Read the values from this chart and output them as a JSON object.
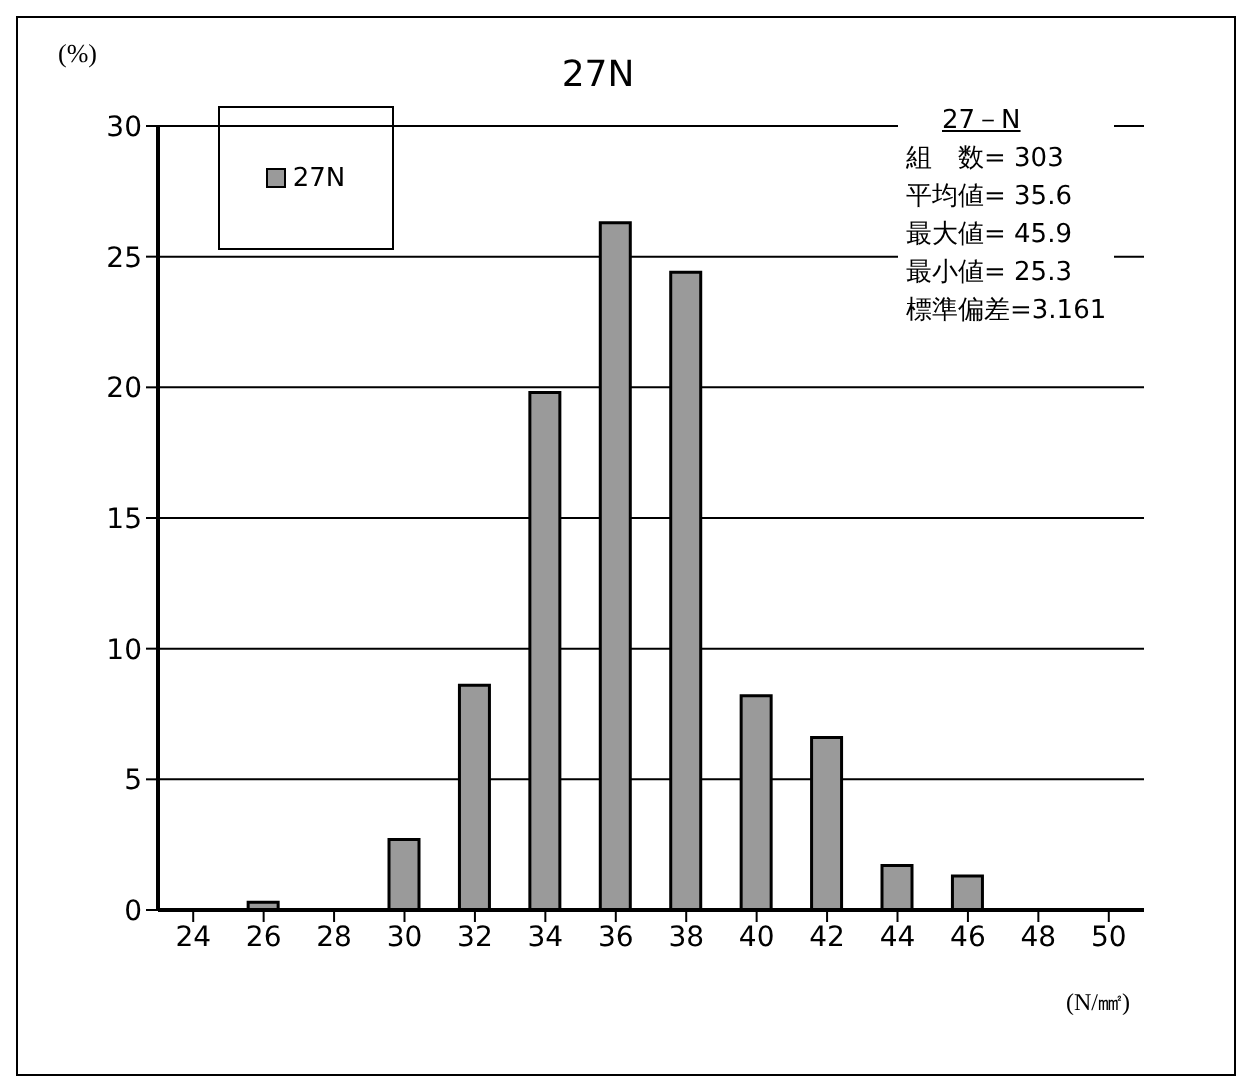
{
  "chart_data": {
    "type": "bar",
    "title": "27N",
    "ylabel": "(%)",
    "xlabel": "(N/㎟)",
    "categories": [
      "24",
      "26",
      "28",
      "30",
      "32",
      "34",
      "36",
      "38",
      "40",
      "42",
      "44",
      "46",
      "48",
      "50"
    ],
    "series": [
      {
        "name": "27N",
        "color": "#9a9a9a",
        "values": [
          0,
          0.3,
          0,
          2.7,
          8.6,
          19.8,
          26.3,
          24.4,
          8.2,
          6.6,
          1.7,
          1.3,
          0,
          0
        ]
      }
    ],
    "ylim": [
      0,
      30
    ],
    "yticks": [
      0,
      5,
      10,
      15,
      20,
      25,
      30
    ],
    "grid": "y",
    "legend": "top left",
    "annotations": [
      "27－N",
      "組　数= 303",
      "平均値= 35.6",
      "最大値= 45.9",
      "最小値= 25.3",
      "標準偏差=3.161"
    ]
  }
}
